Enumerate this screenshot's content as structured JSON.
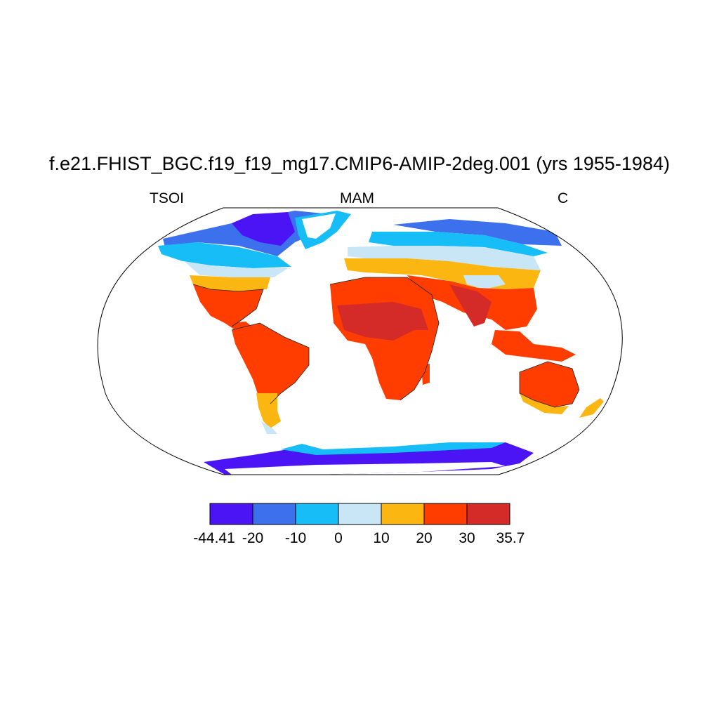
{
  "title": "f.e21.FHIST_BGC.f19_f19_mg17.CMIP6-AMIP-2deg.001 (yrs 1955-1984)",
  "left_label": "TSOI",
  "center_label": "MAM",
  "right_label": "C",
  "colorbar": {
    "tick_labels": [
      "-44.41",
      "-20",
      "-10",
      "0",
      "10",
      "20",
      "30",
      "35.7"
    ],
    "colors": [
      "#4b14f5",
      "#3d70ec",
      "#16bdf7",
      "#c9e6f6",
      "#fbb611",
      "#ff3d00",
      "#d42b28"
    ]
  }
}
